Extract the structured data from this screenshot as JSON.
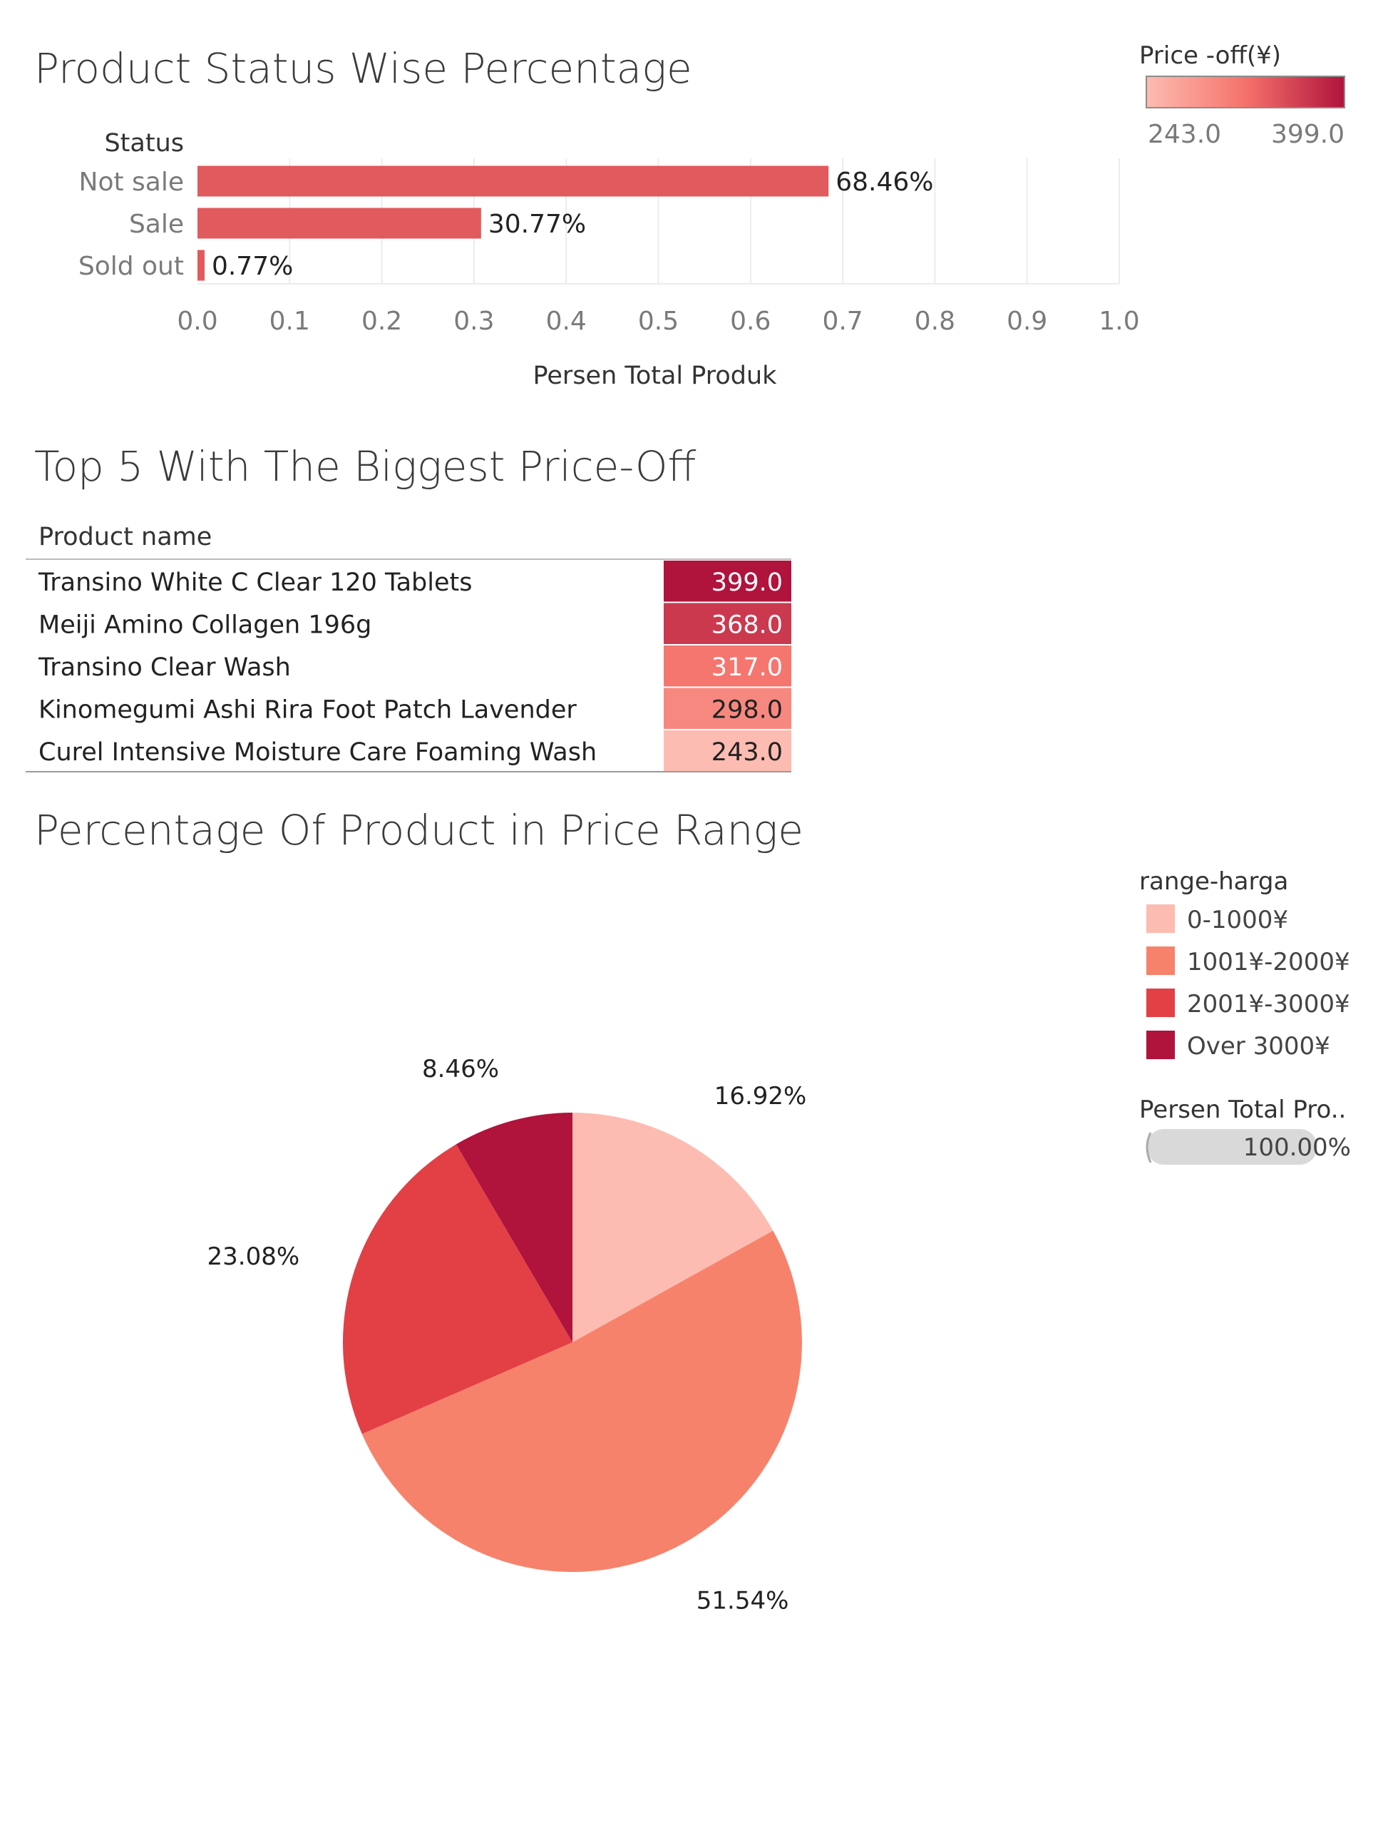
{
  "colors": {
    "bar": "#e05a5e",
    "grid": "#ececec",
    "ramp_low": "#fdbcb1",
    "ramp_mid": "#f5726b",
    "ramp_high": "#b0133c",
    "pie": [
      "#fdbcb1",
      "#f7826c",
      "#e24045",
      "#b0133c"
    ],
    "pill": "#d9d9d9"
  },
  "chart_data": [
    {
      "type": "bar",
      "orientation": "horizontal",
      "title": "Product Status Wise Percentage",
      "dimension_label": "Status",
      "categories": [
        "Not sale",
        "Sale",
        "Sold out"
      ],
      "values": [
        0.6846,
        0.3077,
        0.0077
      ],
      "data_labels": [
        "68.46%",
        "30.77%",
        "0.77%"
      ],
      "xlabel": "Persen Total Produk",
      "xlim": [
        0,
        1.0
      ],
      "ticks": [
        "0.0",
        "0.1",
        "0.2",
        "0.3",
        "0.4",
        "0.5",
        "0.6",
        "0.7",
        "0.8",
        "0.9",
        "1.0"
      ],
      "grid": true
    },
    {
      "type": "table",
      "title": "Top 5 With The Biggest Price-Off",
      "column_header": "Product name",
      "rows": [
        {
          "name": "Transino White C Clear 120 Tablets",
          "value": 399.0,
          "label": "399.0"
        },
        {
          "name": "Meiji Amino Collagen 196g",
          "value": 368.0,
          "label": "368.0"
        },
        {
          "name": "Transino Clear Wash",
          "value": 317.0,
          "label": "317.0"
        },
        {
          "name": "Kinomegumi Ashi Rira Foot Patch Lavender",
          "value": 298.0,
          "label": "298.0"
        },
        {
          "name": "Curel Intensive Moisture Care Foaming Wash",
          "value": 243.0,
          "label": "243.0"
        }
      ],
      "color_legend": {
        "title": "Price -off(¥)",
        "min": 243.0,
        "max": 399.0,
        "min_label": "243.0",
        "max_label": "399.0",
        "placement": "top-right"
      }
    },
    {
      "type": "pie",
      "title": "Percentage Of Product in Price Range",
      "categories": [
        "0-1000¥",
        "1001¥-2000¥",
        "2001¥-3000¥",
        "Over 3000¥"
      ],
      "values": [
        16.92,
        51.54,
        23.08,
        8.46
      ],
      "data_labels": [
        "16.92%",
        "51.54%",
        "23.08%",
        "8.46%"
      ],
      "legend_title": "range-harga",
      "legend_placement": "right",
      "size_legend": {
        "title": "Persen Total Pro..",
        "label": "100.00%"
      }
    }
  ]
}
